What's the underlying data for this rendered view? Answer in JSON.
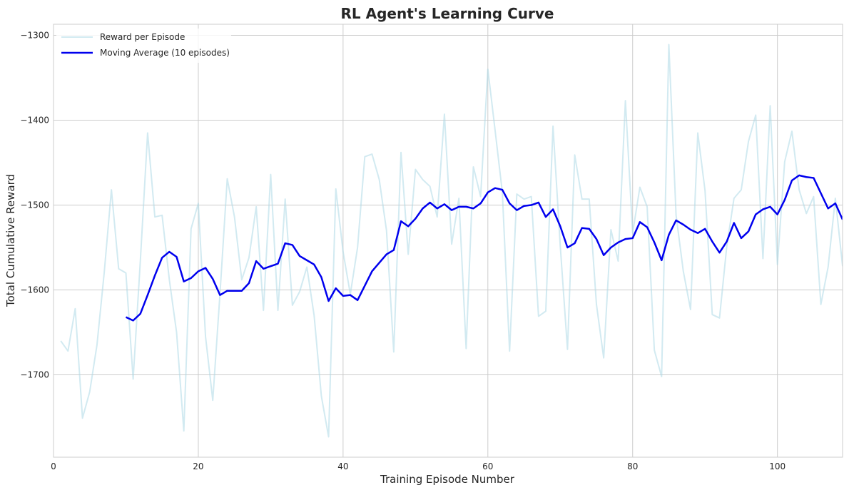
{
  "chart_data": {
    "type": "line",
    "title": "RL Agent's Learning Curve",
    "xlabel": "Training Episode Number",
    "ylabel": "Total Cumulative Reward",
    "xlim": [
      0,
      109
    ],
    "ylim": [
      -1797,
      -1287
    ],
    "xticks": [
      0,
      20,
      40,
      60,
      80,
      100
    ],
    "xtick_labels": [
      "0",
      "20",
      "40",
      "60",
      "80",
      "100"
    ],
    "yticks": [
      -1700,
      -1600,
      -1500,
      -1400,
      -1300
    ],
    "ytick_labels": [
      "−1700",
      "−1600",
      "−1500",
      "−1400",
      "−1300"
    ],
    "grid": true,
    "legend_position": "top-left",
    "series": [
      {
        "name": "Reward per Episode",
        "color": "#add8e6",
        "x_start": 1,
        "values": [
          -1660,
          -1672,
          -1622,
          -1751,
          -1720,
          -1665,
          -1580,
          -1482,
          -1575,
          -1580,
          -1705,
          -1565,
          -1415,
          -1514,
          -1512,
          -1588,
          -1650,
          -1766,
          -1528,
          -1498,
          -1655,
          -1730,
          -1604,
          -1469,
          -1514,
          -1588,
          -1562,
          -1502,
          -1624,
          -1464,
          -1624,
          -1493,
          -1618,
          -1602,
          -1573,
          -1630,
          -1725,
          -1773,
          -1481,
          -1555,
          -1605,
          -1550,
          -1443,
          -1440,
          -1470,
          -1530,
          -1673,
          -1438,
          -1558,
          -1458,
          -1470,
          -1478,
          -1514,
          -1393,
          -1546,
          -1492,
          -1669,
          -1455,
          -1490,
          -1340,
          -1412,
          -1485,
          -1672,
          -1487,
          -1493,
          -1490,
          -1631,
          -1625,
          -1407,
          -1548,
          -1670,
          -1441,
          -1493,
          -1493,
          -1617,
          -1680,
          -1529,
          -1566,
          -1377,
          -1533,
          -1479,
          -1502,
          -1671,
          -1702,
          -1311,
          -1512,
          -1578,
          -1623,
          -1415,
          -1483,
          -1629,
          -1633,
          -1549,
          -1492,
          -1482,
          -1425,
          -1394,
          -1563,
          -1383,
          -1570,
          -1449,
          -1413,
          -1482,
          -1510,
          -1490,
          -1617,
          -1573,
          -1492,
          -1572
        ]
      },
      {
        "name": "Moving Average (10 episodes)",
        "color": "#0000ee",
        "x_start": 10,
        "values": [
          -1632,
          -1636,
          -1628,
          -1606,
          -1583,
          -1562,
          -1555,
          -1561,
          -1590,
          -1586,
          -1578,
          -1574,
          -1587,
          -1606,
          -1601,
          -1601,
          -1601,
          -1592,
          -1566,
          -1575,
          -1572,
          -1569,
          -1545,
          -1547,
          -1560,
          -1565,
          -1570,
          -1585,
          -1613,
          -1598,
          -1607,
          -1606,
          -1612,
          -1595,
          -1578,
          -1568,
          -1558,
          -1553,
          -1519,
          -1525,
          -1516,
          -1504,
          -1497,
          -1504,
          -1499,
          -1506,
          -1502,
          -1502,
          -1504,
          -1498,
          -1485,
          -1480,
          -1482,
          -1498,
          -1506,
          -1501,
          -1500,
          -1497,
          -1514,
          -1505,
          -1525,
          -1550,
          -1545,
          -1527,
          -1528,
          -1540,
          -1559,
          -1550,
          -1544,
          -1540,
          -1539,
          -1520,
          -1526,
          -1544,
          -1565,
          -1535,
          -1518,
          -1523,
          -1529,
          -1533,
          -1528,
          -1543,
          -1556,
          -1543,
          -1521,
          -1539,
          -1531,
          -1511,
          -1505,
          -1502,
          -1511,
          -1494,
          -1471,
          -1465,
          -1467,
          -1468,
          -1486,
          -1504,
          -1498,
          -1517
        ]
      }
    ]
  }
}
